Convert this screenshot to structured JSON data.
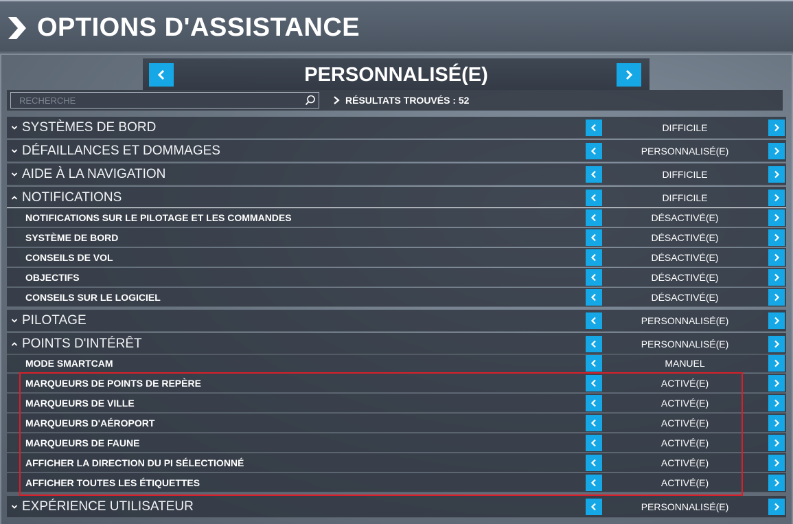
{
  "header": {
    "title": "OPTIONS D'ASSISTANCE"
  },
  "preset": {
    "label": "PERSONNALISÉ(E)"
  },
  "search": {
    "placeholder": "RECHERCHE"
  },
  "results": {
    "text": "RÉSULTATS TROUVÉS : 52"
  },
  "rows": [
    {
      "label": "SYSTÈMES DE BORD",
      "value": "DIFFICILE"
    },
    {
      "label": "DÉFAILLANCES ET DOMMAGES",
      "value": "PERSONNALISÉ(E)"
    },
    {
      "label": "AIDE À LA NAVIGATION",
      "value": "DIFFICILE"
    },
    {
      "label": "NOTIFICATIONS",
      "value": "DIFFICILE"
    },
    {
      "label": "NOTIFICATIONS SUR LE PILOTAGE ET LES COMMANDES",
      "value": "DÉSACTIVÉ(E)"
    },
    {
      "label": "SYSTÈME DE BORD",
      "value": "DÉSACTIVÉ(E)"
    },
    {
      "label": "CONSEILS DE VOL",
      "value": "DÉSACTIVÉ(E)"
    },
    {
      "label": "OBJECTIFS",
      "value": "DÉSACTIVÉ(E)"
    },
    {
      "label": "CONSEILS SUR LE LOGICIEL",
      "value": "DÉSACTIVÉ(E)"
    },
    {
      "label": "PILOTAGE",
      "value": "PERSONNALISÉ(E)"
    },
    {
      "label": "POINTS D'INTÉRÊT",
      "value": "PERSONNALISÉ(E)"
    },
    {
      "label": "MODE SMARTCAM",
      "value": "MANUEL"
    },
    {
      "label": "MARQUEURS DE POINTS DE REPÈRE",
      "value": "ACTIVÉ(E)"
    },
    {
      "label": "MARQUEURS DE VILLE",
      "value": "ACTIVÉ(E)"
    },
    {
      "label": "MARQUEURS D'AÉROPORT",
      "value": "ACTIVÉ(E)"
    },
    {
      "label": "MARQUEURS DE FAUNE",
      "value": "ACTIVÉ(E)"
    },
    {
      "label": "AFFICHER LA DIRECTION DU PI SÉLECTIONNÉ",
      "value": "ACTIVÉ(E)"
    },
    {
      "label": "AFFICHER TOUTES LES ÉTIQUETTES",
      "value": "ACTIVÉ(E)"
    },
    {
      "label": "EXPÉRIENCE UTILISATEUR",
      "value": "PERSONNALISÉ(E)"
    }
  ],
  "colors": {
    "accent": "#16a8e6",
    "highlight_border": "#d8202a"
  }
}
